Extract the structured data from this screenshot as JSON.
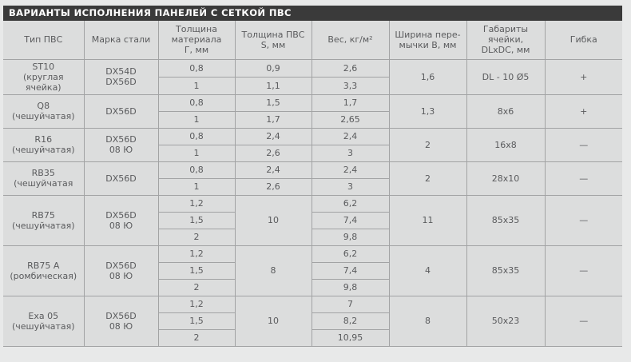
{
  "title": "ВАРИАНТЫ ИСПОЛНЕНИЯ ПАНЕЛЕЙ С СЕТКОЙ ПВС",
  "colors": {
    "title_bar_bg": "#3a3a3a",
    "title_bar_text": "#ffffff",
    "cell_bg": "#dcdddd",
    "page_bg": "#e8e9e9",
    "border": "#a2a3a4",
    "text": "#5a5b5d"
  },
  "table": {
    "headers": [
      "Тип ПВС",
      "Марка стали",
      "Толщина\nматериала\nГ, мм",
      "Толщина ПВС\nS, мм",
      "Вес, кг/м²",
      "Ширина пере-\nмычки В, мм",
      "Габариты\nячейки,\nDLxDC, мм",
      "Гибка"
    ],
    "groups": [
      {
        "type": "ST10\n(круглая\nячейка)",
        "steel": "DX54D\nDX56D",
        "s_merged": null,
        "rows": [
          {
            "g": "0,8",
            "s": "0,9",
            "w": "2,6"
          },
          {
            "g": "1",
            "s": "1,1",
            "w": "3,3"
          }
        ],
        "bridge": "1,6",
        "dims": "DL - 10 Ø5",
        "bend": "+"
      },
      {
        "type": "Q8\n(чешуйчатая)",
        "steel": "DX56D",
        "s_merged": null,
        "rows": [
          {
            "g": "0,8",
            "s": "1,5",
            "w": "1,7"
          },
          {
            "g": "1",
            "s": "1,7",
            "w": "2,65"
          }
        ],
        "bridge": "1,3",
        "dims": "8x6",
        "bend": "+"
      },
      {
        "type": "R16\n(чешуйчатая)",
        "steel": "DX56D\n08 Ю",
        "s_merged": null,
        "rows": [
          {
            "g": "0,8",
            "s": "2,4",
            "w": "2,4"
          },
          {
            "g": "1",
            "s": "2,6",
            "w": "3"
          }
        ],
        "bridge": "2",
        "dims": "16x8",
        "bend": "—"
      },
      {
        "type": "RB35\n(чешуйчатая",
        "steel": "DX56D",
        "s_merged": null,
        "rows": [
          {
            "g": "0,8",
            "s": "2,4",
            "w": "2,4"
          },
          {
            "g": "1",
            "s": "2,6",
            "w": "3"
          }
        ],
        "bridge": "2",
        "dims": "28x10",
        "bend": "—"
      },
      {
        "type": "RB75\n(чешуйчатая)",
        "steel": "DX56D\n08 Ю",
        "s_merged": "10",
        "rows": [
          {
            "g": "1,2",
            "w": "6,2"
          },
          {
            "g": "1,5",
            "w": "7,4"
          },
          {
            "g": "2",
            "w": "9,8"
          }
        ],
        "bridge": "11",
        "dims": "85x35",
        "bend": "—"
      },
      {
        "type": "RB75 A\n(ромбическая)",
        "steel": "DX56D\n08 Ю",
        "s_merged": "8",
        "rows": [
          {
            "g": "1,2",
            "w": "6,2"
          },
          {
            "g": "1,5",
            "w": "7,4"
          },
          {
            "g": "2",
            "w": "9,8"
          }
        ],
        "bridge": "4",
        "dims": "85x35",
        "bend": "—"
      },
      {
        "type": "Exa 05\n(чешуйчатая)",
        "steel": "DX56D\n08 Ю",
        "s_merged": "10",
        "rows": [
          {
            "g": "1,2",
            "w": "7"
          },
          {
            "g": "1,5",
            "w": "8,2"
          },
          {
            "g": "2",
            "w": "10,95"
          }
        ],
        "bridge": "8",
        "dims": "50x23",
        "bend": "—"
      }
    ]
  }
}
